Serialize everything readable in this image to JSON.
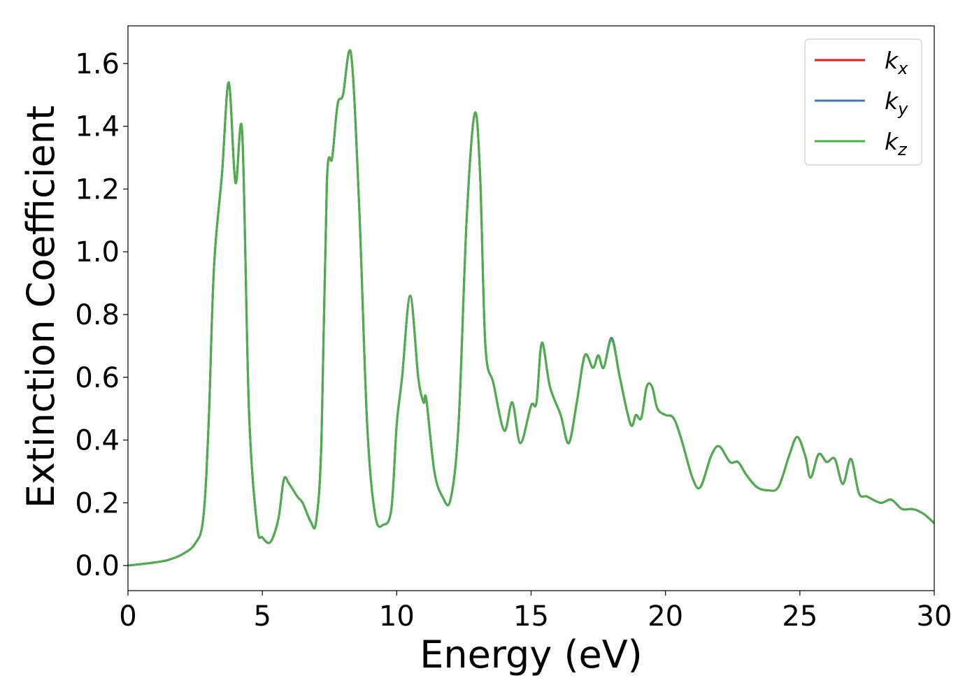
{
  "chart_data": {
    "type": "line",
    "title": "",
    "xlabel": "Energy (eV)",
    "ylabel": "Extinction Coefficient",
    "xlim": [
      0,
      30
    ],
    "ylim": [
      -0.08,
      1.72
    ],
    "xticks": [
      0,
      5,
      10,
      15,
      20,
      25,
      30
    ],
    "xtick_labels": [
      "0",
      "5",
      "10",
      "15",
      "20",
      "25",
      "30"
    ],
    "yticks": [
      0.0,
      0.2,
      0.4,
      0.6,
      0.8,
      1.0,
      1.2,
      1.4,
      1.6
    ],
    "ytick_labels": [
      "0.0",
      "0.2",
      "0.4",
      "0.6",
      "0.8",
      "1.0",
      "1.2",
      "1.4",
      "1.6"
    ],
    "grid": false,
    "legend_position": "top-right",
    "x": [
      0,
      1,
      1.5,
      2,
      2.5,
      2.8,
      3.0,
      3.2,
      3.5,
      3.75,
      4.0,
      4.25,
      4.5,
      4.8,
      5.0,
      5.3,
      5.6,
      5.8,
      6.0,
      6.3,
      6.5,
      6.8,
      7.0,
      7.2,
      7.4,
      7.6,
      7.8,
      8.0,
      8.3,
      8.6,
      8.9,
      9.2,
      9.5,
      9.8,
      10.0,
      10.2,
      10.5,
      10.8,
      11.0,
      11.1,
      11.4,
      11.7,
      12.0,
      12.3,
      12.6,
      12.9,
      13.1,
      13.3,
      13.6,
      14.0,
      14.3,
      14.6,
      15.0,
      15.2,
      15.4,
      15.7,
      16.1,
      16.4,
      16.7,
      17.0,
      17.3,
      17.5,
      17.7,
      18.0,
      18.3,
      18.7,
      18.9,
      19.1,
      19.3,
      19.5,
      19.7,
      20.0,
      20.3,
      20.6,
      21.0,
      21.3,
      21.7,
      22.0,
      22.4,
      22.7,
      23.0,
      23.4,
      23.8,
      24.2,
      24.6,
      24.9,
      25.2,
      25.4,
      25.7,
      26.0,
      26.3,
      26.6,
      26.9,
      27.2,
      27.5,
      28.0,
      28.4,
      28.8,
      29.2,
      29.6,
      30.0
    ],
    "series": [
      {
        "name": "k_x",
        "color": "#e41a1c",
        "values": [
          0.0,
          0.01,
          0.018,
          0.035,
          0.07,
          0.15,
          0.45,
          0.95,
          1.25,
          1.54,
          1.22,
          1.38,
          0.5,
          0.13,
          0.09,
          0.075,
          0.15,
          0.275,
          0.26,
          0.22,
          0.2,
          0.14,
          0.14,
          0.4,
          1.22,
          1.3,
          1.47,
          1.5,
          1.63,
          1.15,
          0.45,
          0.16,
          0.13,
          0.18,
          0.45,
          0.6,
          0.86,
          0.6,
          0.52,
          0.53,
          0.3,
          0.22,
          0.21,
          0.45,
          1.1,
          1.44,
          1.25,
          0.7,
          0.58,
          0.43,
          0.52,
          0.39,
          0.51,
          0.52,
          0.71,
          0.57,
          0.48,
          0.39,
          0.52,
          0.67,
          0.63,
          0.67,
          0.63,
          0.725,
          0.6,
          0.45,
          0.48,
          0.47,
          0.57,
          0.57,
          0.5,
          0.48,
          0.47,
          0.4,
          0.28,
          0.25,
          0.35,
          0.38,
          0.33,
          0.33,
          0.29,
          0.25,
          0.24,
          0.25,
          0.35,
          0.41,
          0.35,
          0.28,
          0.355,
          0.33,
          0.34,
          0.26,
          0.34,
          0.23,
          0.22,
          0.2,
          0.21,
          0.18,
          0.18,
          0.165,
          0.135
        ]
      },
      {
        "name": "k_y",
        "color": "#377eb8",
        "values": [
          0.0,
          0.01,
          0.018,
          0.035,
          0.07,
          0.15,
          0.45,
          0.95,
          1.25,
          1.54,
          1.22,
          1.38,
          0.5,
          0.13,
          0.09,
          0.075,
          0.15,
          0.275,
          0.26,
          0.22,
          0.2,
          0.14,
          0.14,
          0.4,
          1.22,
          1.3,
          1.47,
          1.5,
          1.63,
          1.15,
          0.45,
          0.16,
          0.13,
          0.18,
          0.45,
          0.6,
          0.86,
          0.6,
          0.52,
          0.53,
          0.3,
          0.22,
          0.21,
          0.45,
          1.1,
          1.44,
          1.25,
          0.7,
          0.58,
          0.43,
          0.52,
          0.39,
          0.51,
          0.52,
          0.71,
          0.57,
          0.48,
          0.39,
          0.52,
          0.67,
          0.63,
          0.67,
          0.63,
          0.725,
          0.6,
          0.45,
          0.48,
          0.47,
          0.57,
          0.57,
          0.5,
          0.48,
          0.47,
          0.4,
          0.28,
          0.25,
          0.35,
          0.38,
          0.33,
          0.33,
          0.29,
          0.25,
          0.24,
          0.25,
          0.35,
          0.41,
          0.35,
          0.28,
          0.355,
          0.33,
          0.34,
          0.26,
          0.34,
          0.23,
          0.22,
          0.2,
          0.21,
          0.18,
          0.18,
          0.165,
          0.135
        ]
      },
      {
        "name": "k_z",
        "color": "#4daf4a",
        "values": [
          0.0,
          0.01,
          0.018,
          0.035,
          0.07,
          0.15,
          0.45,
          0.95,
          1.25,
          1.54,
          1.22,
          1.38,
          0.5,
          0.13,
          0.09,
          0.075,
          0.15,
          0.275,
          0.26,
          0.22,
          0.2,
          0.14,
          0.14,
          0.4,
          1.22,
          1.3,
          1.47,
          1.5,
          1.63,
          1.15,
          0.45,
          0.16,
          0.13,
          0.18,
          0.45,
          0.6,
          0.86,
          0.6,
          0.52,
          0.53,
          0.3,
          0.22,
          0.21,
          0.45,
          1.1,
          1.44,
          1.25,
          0.7,
          0.58,
          0.43,
          0.52,
          0.39,
          0.51,
          0.52,
          0.71,
          0.57,
          0.48,
          0.39,
          0.52,
          0.67,
          0.63,
          0.67,
          0.63,
          0.72,
          0.6,
          0.45,
          0.48,
          0.47,
          0.57,
          0.57,
          0.5,
          0.48,
          0.47,
          0.4,
          0.28,
          0.25,
          0.35,
          0.38,
          0.33,
          0.33,
          0.29,
          0.25,
          0.24,
          0.25,
          0.35,
          0.41,
          0.35,
          0.28,
          0.355,
          0.33,
          0.34,
          0.26,
          0.34,
          0.23,
          0.22,
          0.2,
          0.21,
          0.18,
          0.18,
          0.165,
          0.135
        ]
      }
    ],
    "legend": [
      {
        "base": "k",
        "sub": "x",
        "color": "#e41a1c"
      },
      {
        "base": "k",
        "sub": "y",
        "color": "#377eb8"
      },
      {
        "base": "k",
        "sub": "z",
        "color": "#4daf4a"
      }
    ]
  }
}
